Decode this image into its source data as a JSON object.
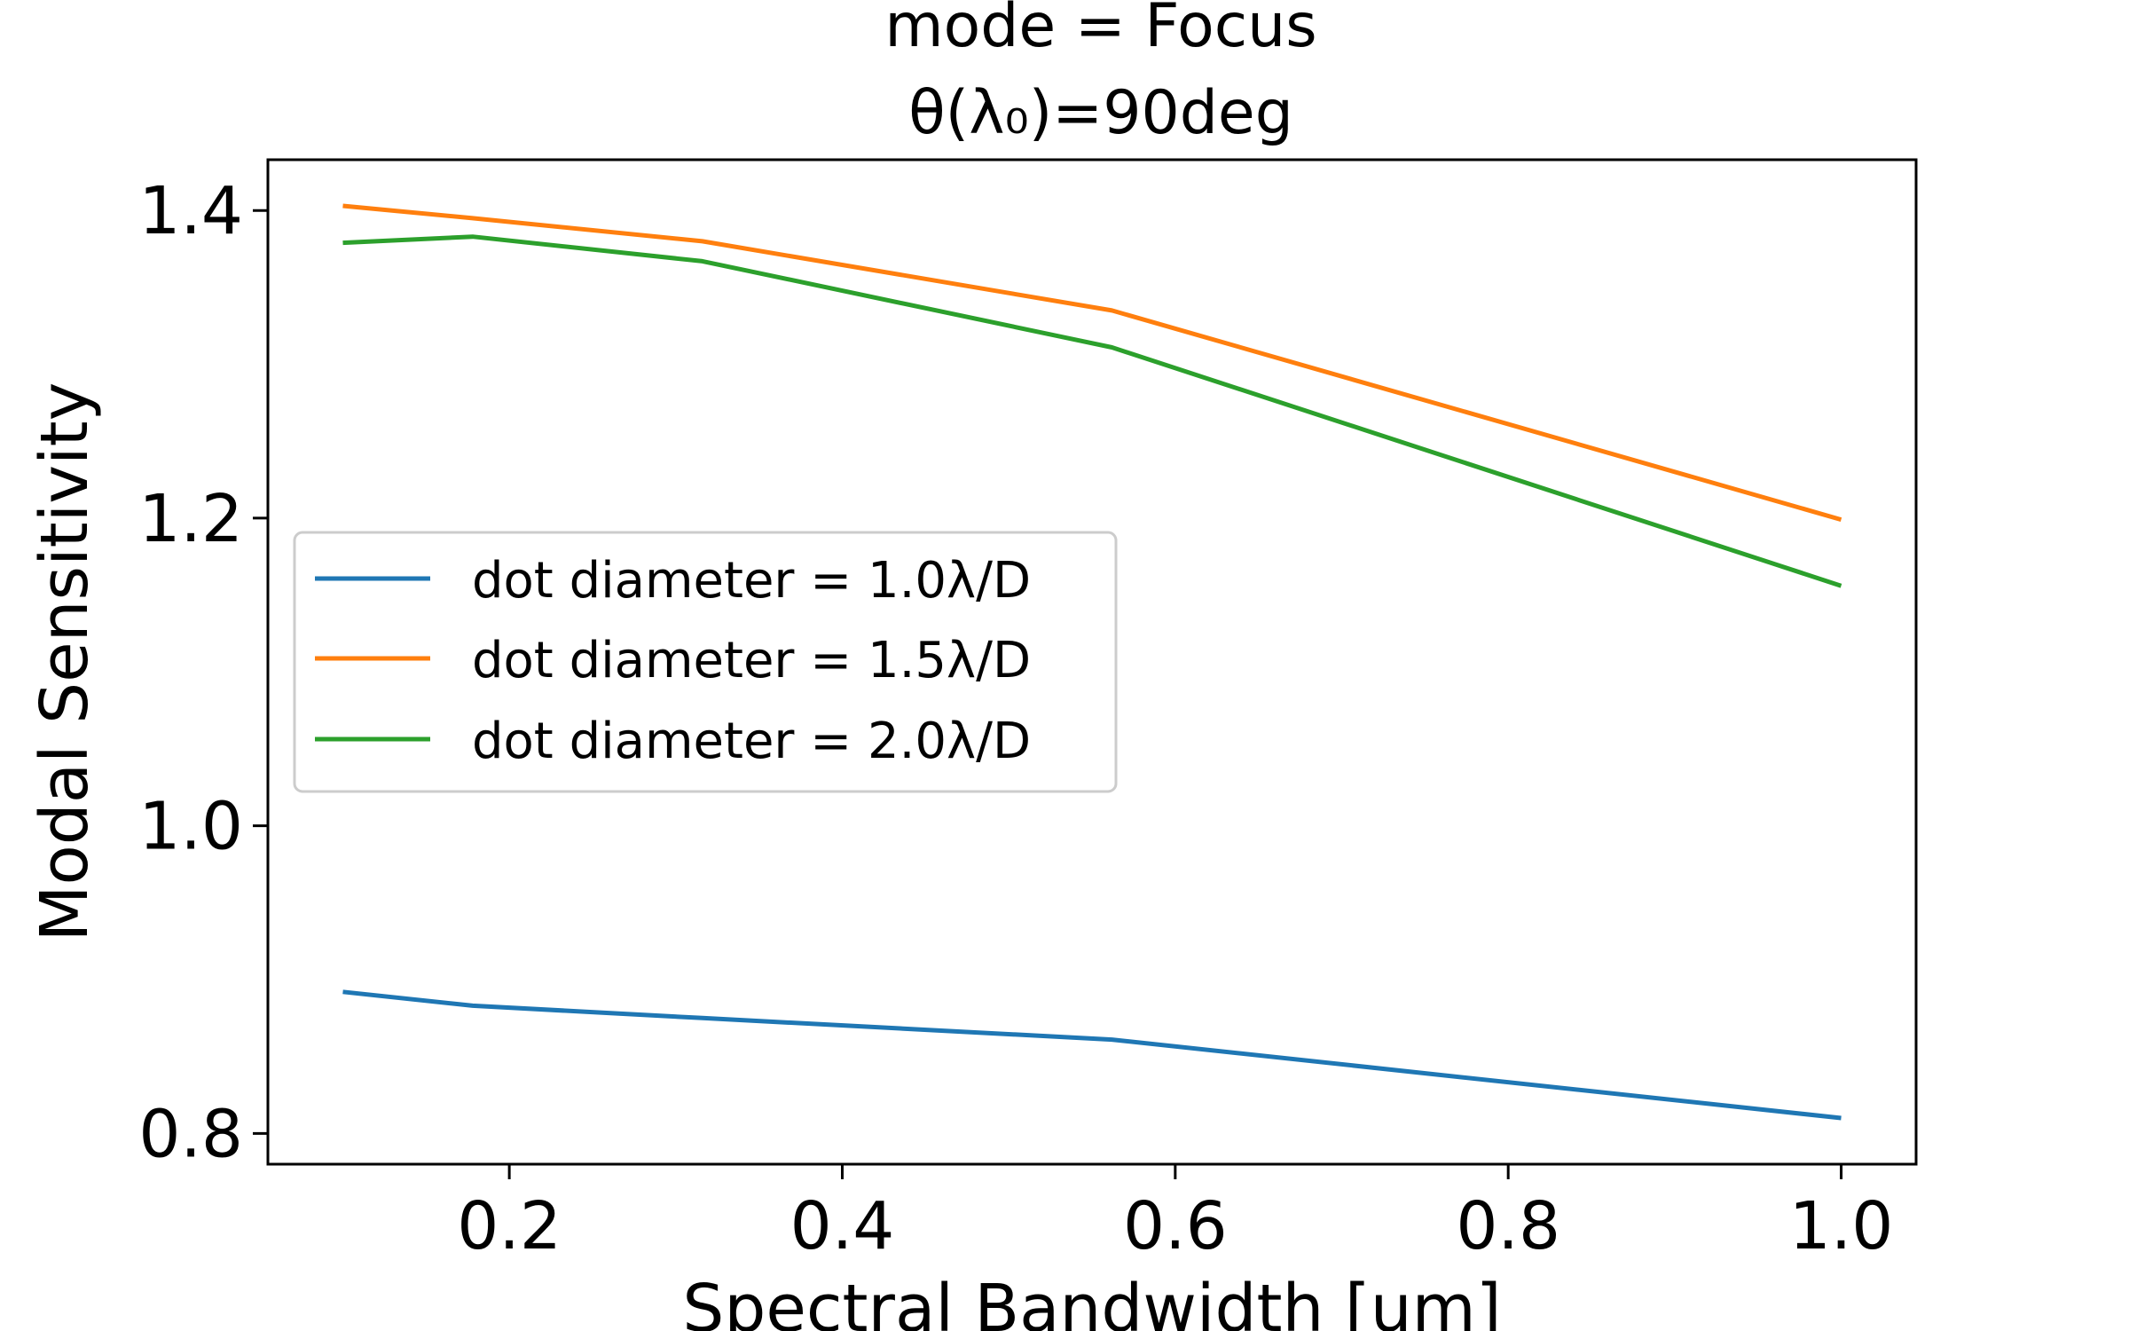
{
  "chart_data": {
    "type": "line",
    "title_line1": "mode = Focus",
    "title_line2": "θ(λ₀)=90deg",
    "xlabel": "Spectral Bandwidth [um]",
    "ylabel": "Modal Sensitivity",
    "xlim": [
      0.055,
      1.045
    ],
    "ylim": [
      0.78,
      1.433
    ],
    "xticks": [
      0.2,
      0.4,
      0.6,
      0.8,
      1.0
    ],
    "xtick_labels": [
      "0.2",
      "0.4",
      "0.6",
      "0.8",
      "1.0"
    ],
    "yticks": [
      0.8,
      1.0,
      1.2,
      1.4
    ],
    "ytick_labels": [
      "0.8",
      "1.0",
      "1.2",
      "1.4"
    ],
    "grid": false,
    "legend_position": "center-left",
    "x": [
      0.1,
      0.178,
      0.316,
      0.562,
      1.0
    ],
    "series": [
      {
        "name": "dot diameter = 1.0λ/D",
        "color": "#1f77b4",
        "values": [
          0.892,
          0.883,
          0.875,
          0.861,
          0.81
        ]
      },
      {
        "name": "dot diameter = 1.5λ/D",
        "color": "#ff7f0e",
        "values": [
          1.403,
          1.395,
          1.38,
          1.335,
          1.199
        ]
      },
      {
        "name": "dot diameter = 2.0λ/D",
        "color": "#2ca02c",
        "values": [
          1.379,
          1.383,
          1.367,
          1.311,
          1.156
        ]
      }
    ]
  }
}
